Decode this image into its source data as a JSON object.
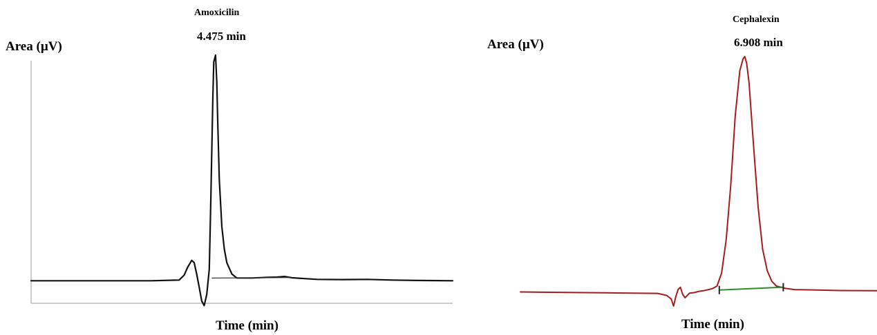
{
  "chart_data": [
    {
      "type": "line",
      "title": "",
      "xlabel": "Time (min)",
      "ylabel": "Area (µV)",
      "line_color": "#111111",
      "baseline_color": "#333333",
      "annotations": [
        {
          "label": "Amoxicilin",
          "value": "4.475 min"
        }
      ],
      "peak": {
        "name": "Amoxicilin",
        "retention_time_label": "4.475 min",
        "x": 4.475,
        "y": 100
      },
      "xlim": [
        0.8,
        9.2
      ],
      "ylim": [
        -10,
        100
      ],
      "series": [
        {
          "x": [
            0.8,
            2.0,
            3.2,
            3.75,
            3.85,
            3.92,
            4.0,
            4.05,
            4.1,
            4.15,
            4.2,
            4.25,
            4.3,
            4.35,
            4.38,
            4.42,
            4.44,
            4.475,
            4.5,
            4.52,
            4.55,
            4.6,
            4.65,
            4.7,
            4.8,
            4.9,
            5.0,
            5.2,
            5.5,
            5.7,
            5.85,
            6.0,
            6.5,
            7.0,
            7.5,
            8.0,
            8.5,
            9.2
          ],
          "y": [
            0,
            0,
            0,
            0.3,
            2.5,
            6,
            9,
            8,
            3,
            -3,
            -9,
            -11,
            -6,
            5,
            35,
            80,
            97,
            100,
            88,
            70,
            45,
            24,
            14,
            8,
            3,
            1.2,
            1.2,
            1.2,
            1.5,
            1.6,
            1.9,
            1.3,
            0.6,
            0.5,
            0.6,
            0.3,
            0.1,
            0
          ]
        }
      ],
      "baseline_segment": {
        "x": [
          4.4,
          6.0
        ],
        "y": [
          1.2,
          1.4
        ]
      }
    },
    {
      "type": "line",
      "title": "",
      "xlabel": "Time (min)",
      "ylabel": "Area (µV)",
      "line_color": "#a61b1b",
      "baseline_color": "#2e8b2e",
      "marker_color": "#222222",
      "annotations": [
        {
          "label": "Cephalexin",
          "value": "6.908 min"
        }
      ],
      "peak": {
        "name": "Cephalexin",
        "retention_time_label": "6.908 min",
        "x": 6.908,
        "y": 100
      },
      "xlim": [
        2.0,
        9.8
      ],
      "ylim": [
        -6,
        100
      ],
      "series": [
        {
          "x": [
            2.0,
            3.0,
            4.0,
            5.0,
            5.2,
            5.3,
            5.35,
            5.4,
            5.45,
            5.5,
            5.55,
            5.6,
            5.65,
            5.7,
            5.8,
            5.9,
            6.0,
            6.1,
            6.2,
            6.3,
            6.4,
            6.5,
            6.6,
            6.7,
            6.8,
            6.87,
            6.908,
            6.95,
            7.0,
            7.1,
            7.2,
            7.3,
            7.4,
            7.5,
            7.6,
            7.8,
            8.0,
            8.5,
            9.0,
            9.8
          ],
          "y": [
            0,
            -0.2,
            -0.4,
            -0.6,
            -1.5,
            -3,
            -6,
            -2,
            1,
            2,
            -1,
            -2.5,
            -1.5,
            -0.5,
            -0.3,
            0.2,
            0.5,
            0.9,
            1.4,
            2.5,
            8,
            22,
            45,
            75,
            94,
            99,
            100,
            97,
            89,
            62,
            36,
            18,
            9,
            4.5,
            2.5,
            1.5,
            1,
            0.8,
            0.6,
            0.5
          ]
        }
      ],
      "integration_markers": [
        6.35,
        7.75
      ],
      "baseline_segment": {
        "x": [
          6.35,
          7.75
        ],
        "y": [
          0.8,
          2.0
        ]
      }
    }
  ]
}
